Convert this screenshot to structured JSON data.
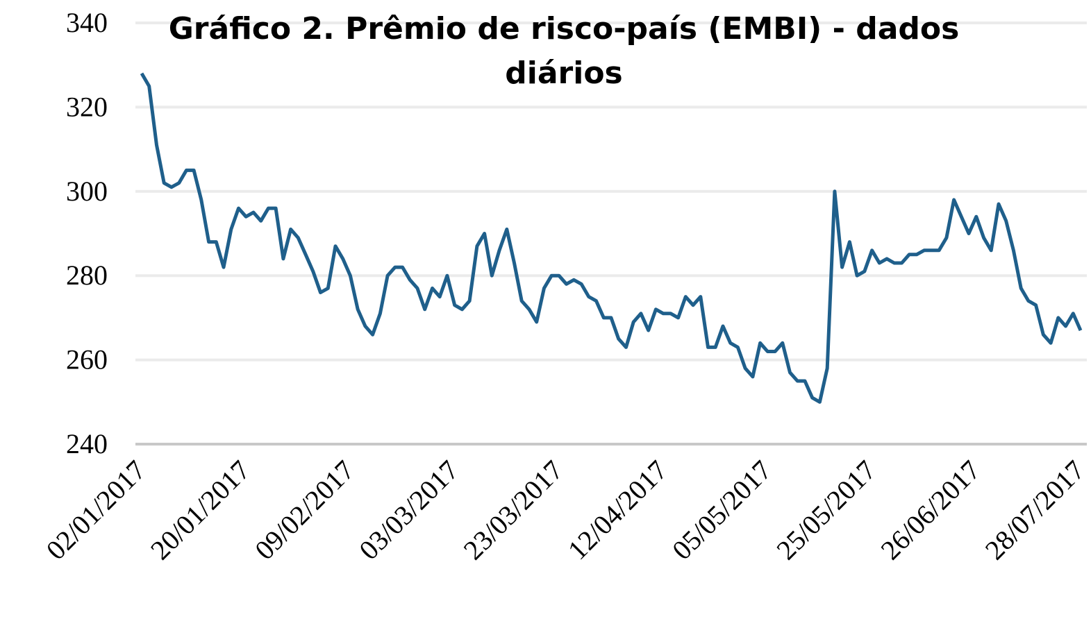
{
  "chart_data": {
    "type": "line",
    "title": "Gráfico 2. Prêmio de risco-país (EMBI) - dados diários",
    "categories": [
      "02/01/2017",
      null,
      null,
      null,
      null,
      null,
      null,
      null,
      null,
      null,
      null,
      null,
      null,
      null,
      "20/01/2017",
      null,
      null,
      null,
      null,
      null,
      null,
      null,
      null,
      null,
      null,
      null,
      null,
      null,
      "09/02/2017",
      null,
      null,
      null,
      null,
      null,
      null,
      null,
      null,
      null,
      null,
      null,
      null,
      null,
      "03/03/2017",
      null,
      null,
      null,
      null,
      null,
      null,
      null,
      null,
      null,
      null,
      null,
      null,
      null,
      "23/03/2017",
      null,
      null,
      null,
      null,
      null,
      null,
      null,
      null,
      null,
      null,
      null,
      null,
      null,
      "12/04/2017",
      null,
      null,
      null,
      null,
      null,
      null,
      null,
      null,
      null,
      null,
      null,
      null,
      null,
      "05/05/2017",
      null,
      null,
      null,
      null,
      null,
      null,
      null,
      null,
      null,
      null,
      null,
      null,
      null,
      "25/05/2017",
      null,
      null,
      null,
      null,
      null,
      null,
      null,
      null,
      null,
      null,
      null,
      null,
      null,
      "26/06/2017",
      null,
      null,
      null,
      null,
      null,
      null,
      null,
      null,
      null,
      null,
      null,
      null,
      null,
      "28/07/2017"
    ],
    "series": [
      {
        "name": "EMBI",
        "color": "#1f5f8b",
        "values": [
          328,
          325,
          311,
          302,
          301,
          302,
          305,
          305,
          298,
          288,
          288,
          282,
          291,
          296,
          294,
          295,
          293,
          296,
          296,
          284,
          291,
          289,
          285,
          281,
          276,
          277,
          287,
          284,
          280,
          272,
          268,
          266,
          271,
          280,
          282,
          282,
          279,
          277,
          272,
          277,
          275,
          280,
          273,
          272,
          274,
          287,
          290,
          280,
          286,
          291,
          283,
          274,
          272,
          269,
          277,
          280,
          280,
          278,
          279,
          278,
          275,
          274,
          270,
          270,
          265,
          263,
          269,
          271,
          267,
          272,
          271,
          271,
          270,
          275,
          273,
          275,
          263,
          263,
          268,
          264,
          263,
          258,
          256,
          264,
          262,
          262,
          264,
          257,
          255,
          255,
          251,
          250,
          258,
          300,
          282,
          288,
          280,
          281,
          286,
          283,
          284,
          283,
          283,
          285,
          285,
          286,
          286,
          286,
          289,
          298,
          294,
          290,
          294,
          289,
          286,
          297,
          293,
          286,
          277,
          274,
          273,
          266,
          264,
          270,
          268,
          271,
          267
        ]
      }
    ],
    "ylim": [
      240,
      340
    ],
    "yticks": [
      240,
      260,
      280,
      300,
      320,
      340
    ],
    "grid": true
  }
}
